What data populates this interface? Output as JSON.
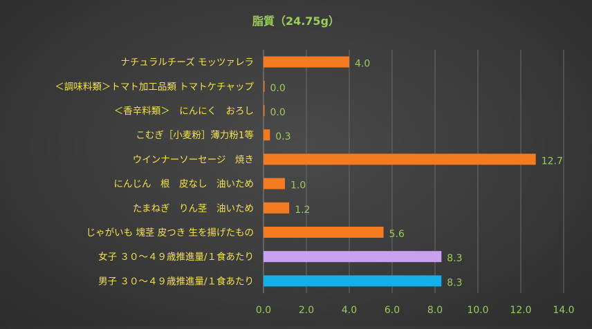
{
  "chart_data": {
    "type": "bar",
    "orientation": "horizontal",
    "title": "脂質（24.75g）",
    "categories": [
      "ナチュラルチーズ モッツァレラ",
      "＜調味料類＞トマト加工品類 トマトケチャップ",
      "＜香辛料類＞　にんにく　おろし",
      "こむぎ［小麦粉］薄力粉1等",
      "ウインナーソーセージ　焼き",
      "にんじん　根　皮なし　油いため",
      "たまねぎ　りん茎　油いため",
      "じゃがいも 塊茎 皮つき 生を揚げたもの",
      "女子 ３０～４９歳推進量/１食あたり",
      "男子 ３０～４９歳推進量/１食あたり"
    ],
    "values": [
      4.0,
      0.0,
      0.0,
      0.3,
      12.7,
      1.0,
      1.2,
      5.6,
      8.3,
      8.3
    ],
    "value_labels": [
      "4.0",
      "0.0",
      "0.0",
      "0.3",
      "12.7",
      "1.0",
      "1.2",
      "5.6",
      "8.3",
      "8.3"
    ],
    "bar_colors": [
      "#f47b20",
      "#f47b20",
      "#f47b20",
      "#f47b20",
      "#f47b20",
      "#f47b20",
      "#f47b20",
      "#f47b20",
      "#c9a0f2",
      "#13b0ea"
    ],
    "xlim": [
      0,
      14
    ],
    "x_ticks": [
      "0.0",
      "2.0",
      "4.0",
      "6.0",
      "8.0",
      "10.0",
      "12.0",
      "14.0"
    ],
    "grid": true,
    "legend": "none"
  },
  "colors": {
    "title": "#9acd5a",
    "category_label": "#f5e24a",
    "value_label": "#9acd5a",
    "tick_label": "#9acd5a",
    "gridline": "#6b6b6b",
    "axis_line": "#8a8a8a"
  }
}
